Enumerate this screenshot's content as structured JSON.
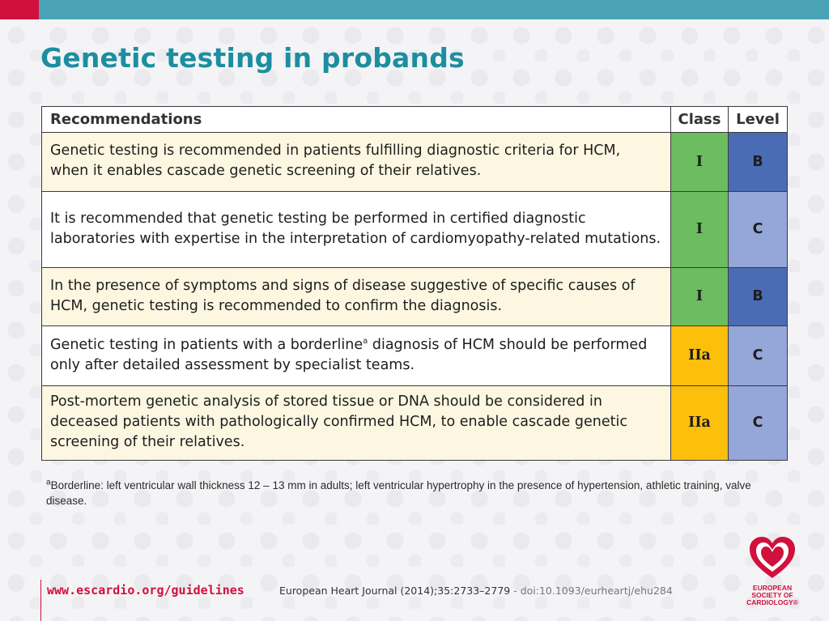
{
  "title": "Genetic testing in probands",
  "table": {
    "headers": {
      "recommendations": "Recommendations",
      "class": "Class",
      "level": "Level"
    },
    "rows": [
      {
        "text": "Genetic testing is recommended in patients fulfilling diagnostic criteria for HCM, when it enables cascade genetic screening of their relatives.",
        "class": "I",
        "level": "B"
      },
      {
        "text": "It is recommended that genetic testing be performed in certified diagnostic laboratories with expertise in the interpretation of cardiomyopathy-related mutations.",
        "class": "I",
        "level": "C"
      },
      {
        "text": "In the presence of symptoms and signs of disease suggestive of specific causes of HCM, genetic testing is recommended to confirm the diagnosis.",
        "class": "I",
        "level": "B"
      },
      {
        "text_before": "Genetic testing in patients with a borderline",
        "text_sup": "a",
        "text_after": " diagnosis of HCM should be performed only after detailed assessment by specialist teams.",
        "class": "IIa",
        "level": "C"
      },
      {
        "text": "Post-mortem genetic analysis of stored tissue or DNA should be considered in deceased patients with pathologically confirmed HCM, to enable cascade genetic screening of their relatives.",
        "class": "IIa",
        "level": "C"
      }
    ]
  },
  "footnote": {
    "sup": "a",
    "text": "Borderline: left ventricular wall thickness 12 – 13 mm in adults; left ventricular  hypertrophy in the presence of hypertension, athletic training, valve disease."
  },
  "footer": {
    "url": "www.escardio.org/guidelines",
    "journal": "European Heart Journal (2014);35:2733–2779",
    "doi": " - doi:10.1093/eurheartj/ehu284"
  },
  "logo": {
    "line1": "EUROPEAN",
    "line2": "SOCIETY OF",
    "line3": "CARDIOLOGY®",
    "icon": "heart-logo-icon"
  },
  "colors": {
    "brand_red": "#d1103c",
    "teal": "#4aa3b6",
    "class_I": "#6bbd5f",
    "class_IIa": "#fbbf0c",
    "level_B": "#4a6cb5",
    "level_C": "#95a6d8"
  }
}
